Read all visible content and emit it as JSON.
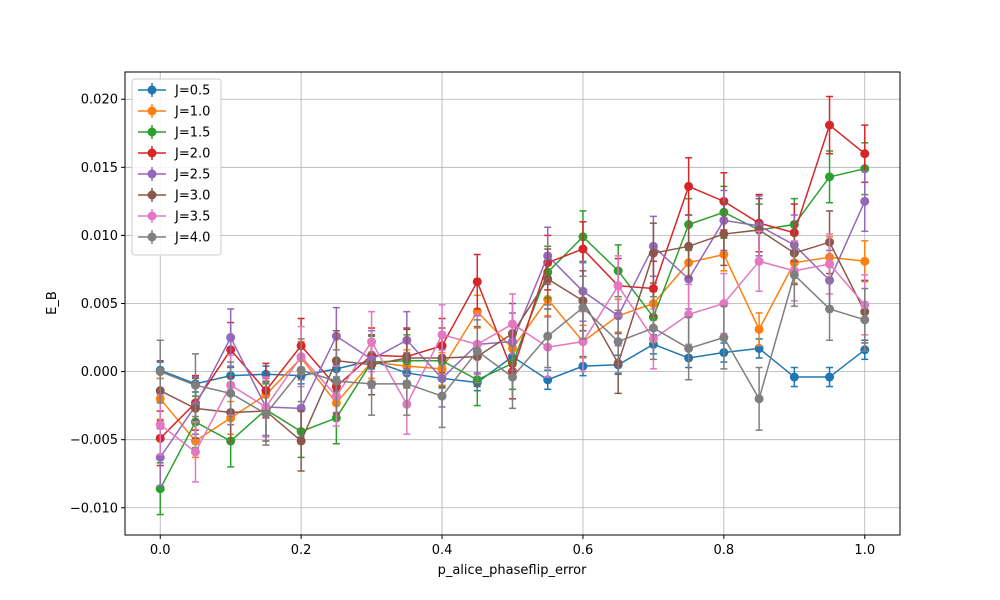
{
  "chart_data": {
    "type": "line",
    "title": "",
    "xlabel": "p_alice_phaseflip_error",
    "ylabel": "E_B",
    "xlim": [
      -0.05,
      1.05
    ],
    "ylim": [
      -0.012,
      0.022
    ],
    "grid": true,
    "legend_position": "top-left",
    "x": [
      0.0,
      0.05,
      0.1,
      0.15,
      0.2,
      0.25,
      0.3,
      0.35,
      0.4,
      0.45,
      0.5,
      0.55,
      0.6,
      0.65,
      0.7,
      0.75,
      0.8,
      0.85,
      0.9,
      0.95,
      1.0
    ],
    "xticks": [
      0.0,
      0.2,
      0.4,
      0.6,
      0.8,
      1.0
    ],
    "xtick_labels": [
      "0.0",
      "0.2",
      "0.4",
      "0.6",
      "0.8",
      "1.0"
    ],
    "yticks": [
      -0.01,
      -0.005,
      0.0,
      0.005,
      0.01,
      0.015,
      0.02
    ],
    "ytick_labels": [
      "−0.010",
      "−0.005",
      "0.000",
      "0.005",
      "0.010",
      "0.015",
      "0.020"
    ],
    "series": [
      {
        "name": "J=0.5",
        "color": "#1f77b4",
        "values": [
          0.0001,
          -0.0009,
          -0.0003,
          -0.0002,
          -0.0003,
          0.0002,
          0.0008,
          -0.0001,
          -0.0005,
          -0.0008,
          0.0011,
          -0.0006,
          0.0004,
          0.0005,
          0.002,
          0.001,
          0.0014,
          0.0017,
          -0.0004,
          -0.0004,
          0.0016
        ],
        "errors": [
          0.0006,
          0.0006,
          0.0006,
          0.0006,
          0.0006,
          0.0006,
          0.0006,
          0.0006,
          0.0006,
          0.0006,
          0.0007,
          0.0007,
          0.0007,
          0.0007,
          0.0007,
          0.0007,
          0.0007,
          0.0007,
          0.0007,
          0.0007,
          0.0007
        ]
      },
      {
        "name": "J=1.0",
        "color": "#ff7f0e",
        "values": [
          -0.002,
          -0.0051,
          -0.0034,
          -0.0017,
          0.001,
          -0.0023,
          0.0007,
          0.0004,
          0.0002,
          0.0044,
          0.0017,
          0.0053,
          0.0022,
          0.0041,
          0.005,
          0.008,
          0.0086,
          0.0031,
          0.008,
          0.0084,
          0.0081
        ],
        "errors": [
          0.0015,
          0.0012,
          0.0012,
          0.0012,
          0.0012,
          0.0012,
          0.0012,
          0.0012,
          0.0012,
          0.0012,
          0.0012,
          0.0012,
          0.0012,
          0.0012,
          0.0012,
          0.0012,
          0.0012,
          0.0012,
          0.0015,
          0.0015,
          0.0015
        ]
      },
      {
        "name": "J=1.5",
        "color": "#2ca02c",
        "values": [
          -0.0086,
          -0.0037,
          -0.0051,
          -0.0028,
          -0.0044,
          -0.0034,
          0.0007,
          0.0008,
          0.0008,
          -0.0006,
          0.0006,
          0.0073,
          0.0099,
          0.0074,
          0.004,
          0.0108,
          0.0117,
          0.0104,
          0.0108,
          0.0143,
          0.0149
        ],
        "errors": [
          0.0019,
          0.0019,
          0.0019,
          0.0019,
          0.0019,
          0.0019,
          0.0019,
          0.0019,
          0.0019,
          0.0019,
          0.0019,
          0.0019,
          0.0019,
          0.0019,
          0.0019,
          0.0019,
          0.0019,
          0.0019,
          0.0019,
          0.0019,
          0.0019
        ]
      },
      {
        "name": "J=2.0",
        "color": "#d62728",
        "values": [
          -0.0049,
          -0.0023,
          0.0016,
          -0.0014,
          0.0019,
          -0.0011,
          0.0012,
          0.0011,
          0.0019,
          0.0066,
          0.0,
          0.008,
          0.009,
          0.0063,
          0.0061,
          0.0136,
          0.0125,
          0.0109,
          0.0102,
          0.0181,
          0.016
        ],
        "errors": [
          0.002,
          0.002,
          0.002,
          0.002,
          0.002,
          0.002,
          0.002,
          0.002,
          0.002,
          0.002,
          0.002,
          0.002,
          0.002,
          0.002,
          0.002,
          0.0021,
          0.0021,
          0.0021,
          0.0021,
          0.0021,
          0.0021
        ]
      },
      {
        "name": "J=2.5",
        "color": "#9467bd",
        "values": [
          -0.0063,
          -0.0025,
          0.0025,
          -0.0026,
          -0.0027,
          0.0026,
          0.0009,
          0.0023,
          -0.0005,
          0.002,
          0.0022,
          0.0085,
          0.0059,
          0.0041,
          0.0092,
          0.0068,
          0.0111,
          0.0107,
          0.0093,
          0.0067,
          0.0125
        ],
        "errors": [
          0.0021,
          0.0021,
          0.0021,
          0.0021,
          0.0021,
          0.0021,
          0.0021,
          0.0021,
          0.0021,
          0.0021,
          0.0021,
          0.0021,
          0.0022,
          0.0022,
          0.0022,
          0.0022,
          0.0022,
          0.0022,
          0.0022,
          0.0022,
          0.0022
        ]
      },
      {
        "name": "J=3.0",
        "color": "#8c564b",
        "values": [
          -0.0014,
          -0.0027,
          -0.003,
          -0.0029,
          -0.0051,
          0.0008,
          0.0005,
          0.001,
          0.001,
          0.0011,
          0.0028,
          0.0068,
          0.0052,
          0.0006,
          0.0087,
          0.0092,
          0.0101,
          0.0104,
          0.0087,
          0.0095,
          0.0044
        ],
        "errors": [
          0.0022,
          0.0022,
          0.0022,
          0.0022,
          0.0022,
          0.0022,
          0.0022,
          0.0022,
          0.0022,
          0.0022,
          0.0022,
          0.0022,
          0.0022,
          0.0022,
          0.0022,
          0.0023,
          0.0023,
          0.0023,
          0.0023,
          0.0023,
          0.0023
        ]
      },
      {
        "name": "J=3.5",
        "color": "#e377c2",
        "values": [
          -0.0039,
          -0.0059,
          -0.001,
          -0.0026,
          0.0011,
          -0.0018,
          0.0022,
          -0.0024,
          0.0027,
          0.002,
          0.0035,
          0.0018,
          0.0022,
          0.0063,
          0.0024,
          0.0042,
          0.005,
          0.0081,
          0.0074,
          0.0079,
          0.0049
        ],
        "errors": [
          0.0022,
          0.0022,
          0.0022,
          0.0022,
          0.0022,
          0.0022,
          0.0022,
          0.0022,
          0.0022,
          0.0022,
          0.0022,
          0.0022,
          0.0022,
          0.0022,
          0.0022,
          0.0022,
          0.0022,
          0.0022,
          0.0022,
          0.0022,
          0.0022
        ]
      },
      {
        "name": "J=4.0",
        "color": "#7f7f7f",
        "values": [
          0.0,
          -0.001,
          -0.0016,
          -0.0031,
          0.0001,
          -0.0007,
          -0.0009,
          -0.0009,
          -0.0018,
          0.0015,
          -0.0004,
          0.0026,
          0.0047,
          0.0022,
          0.0032,
          0.0017,
          0.0025,
          -0.002,
          0.0071,
          0.0046,
          0.0038
        ],
        "errors": [
          0.0023,
          0.0023,
          0.0023,
          0.0023,
          0.0023,
          0.0023,
          0.0023,
          0.0023,
          0.0023,
          0.0023,
          0.0023,
          0.0023,
          0.0023,
          0.0023,
          0.0023,
          0.0023,
          0.0023,
          0.0023,
          0.0023,
          0.0023,
          0.0023
        ]
      }
    ]
  }
}
